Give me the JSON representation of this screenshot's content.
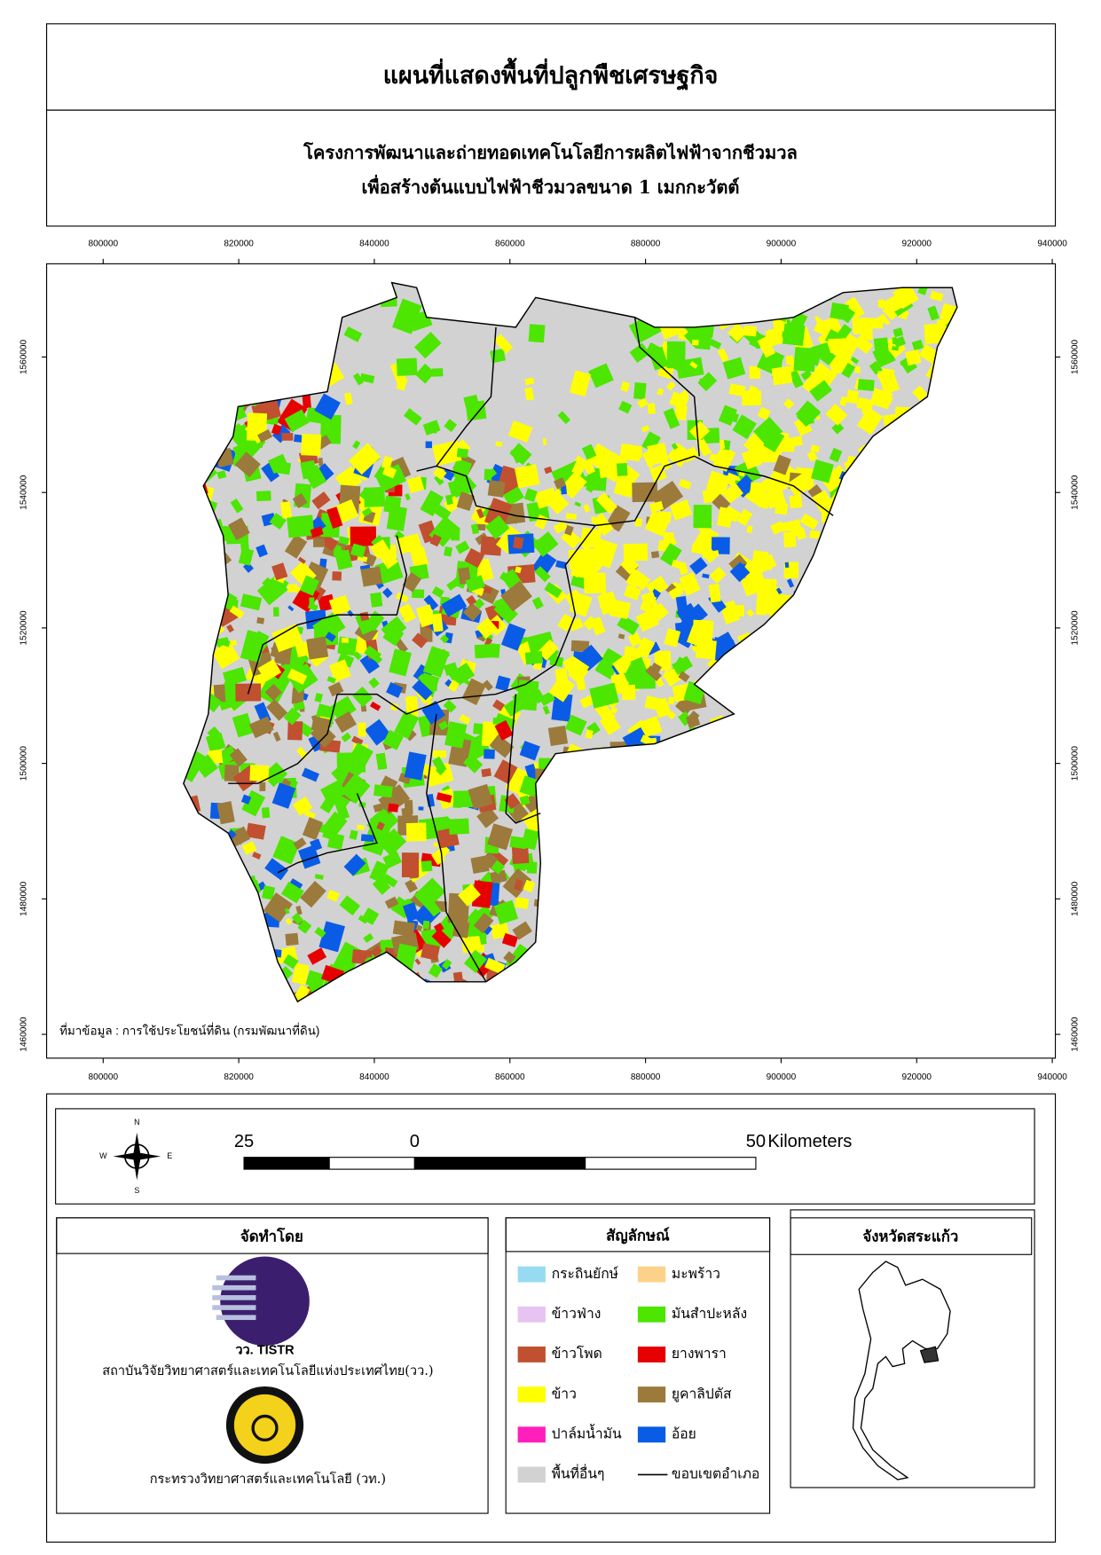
{
  "header": {
    "title": "แผนที่แสดงพื้นที่ปลูกพืชเศรษฐกิจ",
    "subtitle_lines": [
      "โครงการพัฒนาและถ่ายทอดเทคโนโลยีการผลิตไฟฟ้าจากชีวมวล",
      "เพื่อสร้างต้นแบบไฟฟ้าชีวมวลขนาด 1 เมกกะวัตต์"
    ]
  },
  "map": {
    "xticks": [
      800000,
      820000,
      840000,
      860000,
      880000,
      900000,
      920000,
      940000
    ],
    "yticks": [
      1460000,
      1480000,
      1500000,
      1520000,
      1540000,
      1560000
    ],
    "source_note": "ที่มาข้อมูล : การใช้ประโยชน์ที่ดิน  (กรมพัฒนาที่ดิน)"
  },
  "compass": {
    "n": "N",
    "w": "W",
    "e": "E",
    "s": "S"
  },
  "scalebar": {
    "left": 25,
    "zero": 0,
    "right": 50,
    "unit": "Kilometers"
  },
  "producer": {
    "title": "จัดทำโดย",
    "logo_text": "วว. TISTR",
    "orgs": [
      "สถาบันวิจัยวิทยาศาสตร์และเทคโนโลยีแห่งประเทศไทย(วว.)",
      "กระทรวงวิทยาศาสตร์และเทคโนโลยี (วท.)"
    ]
  },
  "legend": {
    "title": "สัญลักษณ์",
    "items": [
      {
        "label": "กระถินยักษ์",
        "color": "#97dbf2"
      },
      {
        "label": "มะพร้าว",
        "color": "#fcd28a"
      },
      {
        "label": "ข้าวฟ่าง",
        "color": "#e6c3f0"
      },
      {
        "label": "มันสำปะหลัง",
        "color": "#4ce600"
      },
      {
        "label": "ข้าวโพด",
        "color": "#c0502f"
      },
      {
        "label": "ยางพารา",
        "color": "#e60000"
      },
      {
        "label": "ข้าว",
        "color": "#ffff00"
      },
      {
        "label": "ยูคาลิปตัส",
        "color": "#9b7a3c"
      },
      {
        "label": "ปาล์มน้ำมัน",
        "color": "#ff1fbd"
      },
      {
        "label": "อ้อย",
        "color": "#0a5ce6"
      },
      {
        "label": "พื้นที่อื่นๆ",
        "color": "#d2d2d2"
      },
      {
        "label": "ขอบเขตอำเภอ",
        "color": "#000000",
        "symbol": "line"
      }
    ]
  },
  "locator": {
    "title": "จังหวัดสระแก้ว"
  }
}
